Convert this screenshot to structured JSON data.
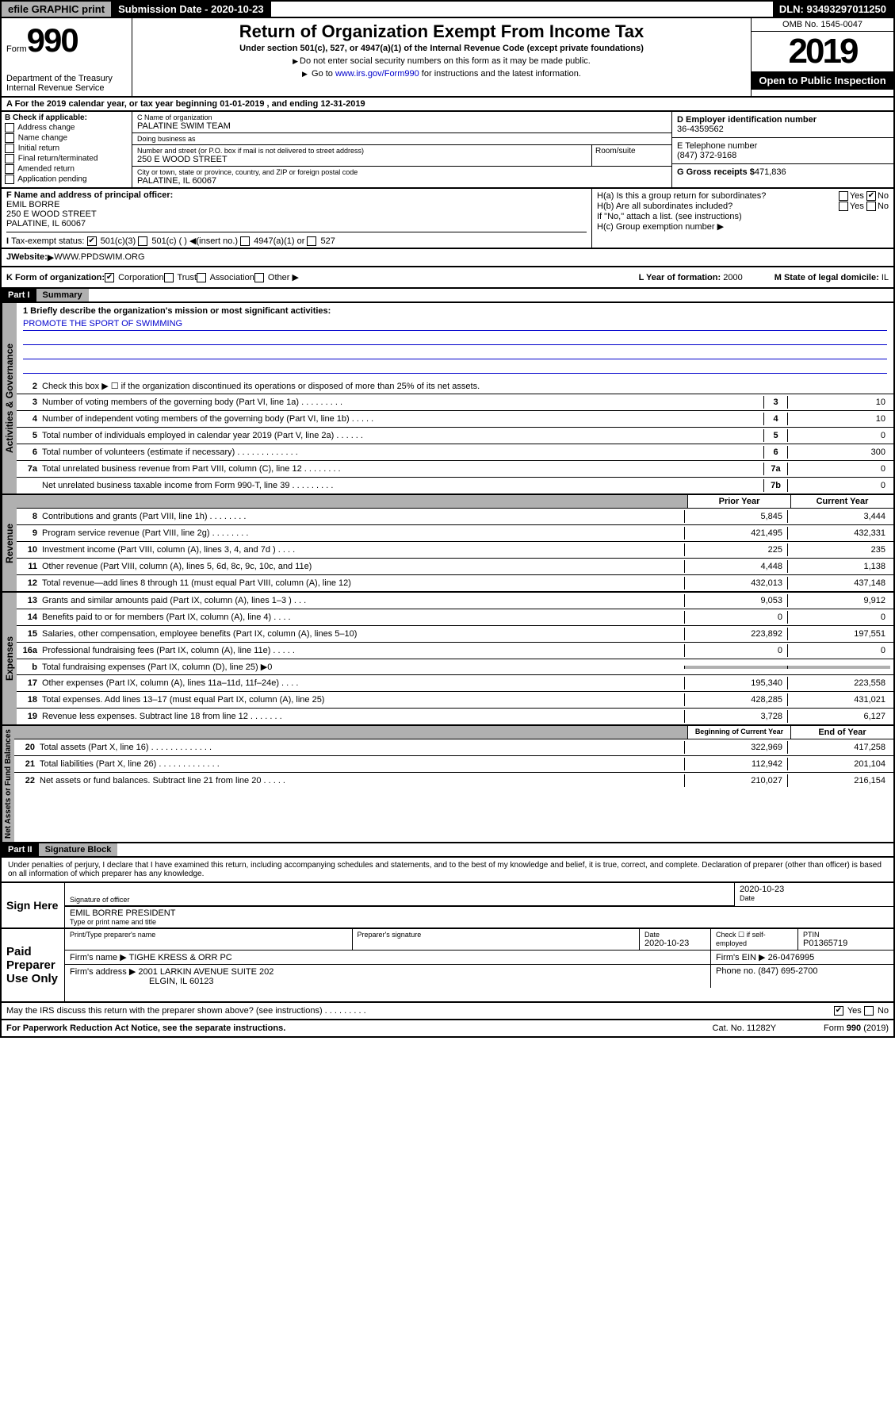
{
  "topbar": {
    "efile": "efile GRAPHIC print",
    "submission": "Submission Date - 2020-10-23",
    "dln": "DLN: 93493297011250"
  },
  "header": {
    "form_prefix": "Form",
    "form_number": "990",
    "dept": "Department of the Treasury\nInternal Revenue Service",
    "title": "Return of Organization Exempt From Income Tax",
    "subtitle": "Under section 501(c), 527, or 4947(a)(1) of the Internal Revenue Code (except private foundations)",
    "note1": "Do not enter social security numbers on this form as it may be made public.",
    "note2_pre": "Go to ",
    "note2_link": "www.irs.gov/Form990",
    "note2_post": " for instructions and the latest information.",
    "omb": "OMB No. 1545-0047",
    "year": "2019",
    "open": "Open to Public Inspection"
  },
  "line_a": "For the 2019 calendar year, or tax year beginning 01-01-2019   , and ending 12-31-2019",
  "box_b": {
    "title": "B Check if applicable:",
    "opts": [
      "Address change",
      "Name change",
      "Initial return",
      "Final return/terminated",
      "Amended return",
      "Application pending"
    ]
  },
  "box_c": {
    "name_lbl": "C Name of organization",
    "name": "PALATINE SWIM TEAM",
    "dba_lbl": "Doing business as",
    "addr_lbl": "Number and street (or P.O. box if mail is not delivered to street address)",
    "addr": "250 E WOOD STREET",
    "room_lbl": "Room/suite",
    "city_lbl": "City or town, state or province, country, and ZIP or foreign postal code",
    "city": "PALATINE, IL  60067"
  },
  "box_d": {
    "lbl": "D Employer identification number",
    "val": "36-4359562"
  },
  "box_e": {
    "lbl": "E Telephone number",
    "val": "(847) 372-9168"
  },
  "box_g": {
    "lbl": "G Gross receipts $",
    "val": "471,836"
  },
  "box_f": {
    "lbl": "F  Name and address of principal officer:",
    "name": "EMIL BORRE",
    "addr1": "250 E WOOD STREET",
    "addr2": "PALATINE, IL  60067"
  },
  "box_h": {
    "ha": "H(a)  Is this a group return for subordinates?",
    "ha_yes": "Yes",
    "ha_no": "No",
    "hb": "H(b)  Are all subordinates included?",
    "hb_yes": "Yes",
    "hb_no": "No",
    "hb_note": "If \"No,\" attach a list. (see instructions)",
    "hc": "H(c)  Group exemption number"
  },
  "row_i": {
    "lbl": "Tax-exempt status:",
    "o1": "501(c)(3)",
    "o2": "501(c) (  )",
    "o2b": "(insert no.)",
    "o3": "4947(a)(1) or",
    "o4": "527"
  },
  "row_j": {
    "lbl": "Website:",
    "val": "WWW.PPDSWIM.ORG"
  },
  "row_k": {
    "lbl": "K Form of organization:",
    "o1": "Corporation",
    "o2": "Trust",
    "o3": "Association",
    "o4": "Other",
    "l_lbl": "L Year of formation:",
    "l_val": "2000",
    "m_lbl": "M State of legal domicile:",
    "m_val": "IL"
  },
  "part1": {
    "hdr": "Part I",
    "title": "Summary"
  },
  "mission": {
    "lbl": "1  Briefly describe the organization's mission or most significant activities:",
    "text": "PROMOTE THE SPORT OF SWIMMING"
  },
  "gov_lines": [
    {
      "n": "2",
      "desc": "Check this box ▶ ☐  if the organization discontinued its operations or disposed of more than 25% of its net assets."
    },
    {
      "n": "3",
      "desc": "Number of voting members of the governing body (Part VI, line 1a)  .   .   .   .   .   .   .   .   .",
      "box": "3",
      "val": "10"
    },
    {
      "n": "4",
      "desc": "Number of independent voting members of the governing body (Part VI, line 1b)   .   .   .   .   .",
      "box": "4",
      "val": "10"
    },
    {
      "n": "5",
      "desc": "Total number of individuals employed in calendar year 2019 (Part V, line 2a)   .   .   .   .   .   .",
      "box": "5",
      "val": "0"
    },
    {
      "n": "6",
      "desc": "Total number of volunteers (estimate if necessary)   .   .   .   .   .   .   .   .   .   .   .   .   .",
      "box": "6",
      "val": "300"
    },
    {
      "n": "7a",
      "desc": "Total unrelated business revenue from Part VIII, column (C), line 12   .   .   .   .   .   .   .   .",
      "box": "7a",
      "val": "0"
    },
    {
      "n": "",
      "desc": "Net unrelated business taxable income from Form 990-T, line 39  .   .   .   .   .   .   .   .   .",
      "box": "7b",
      "val": "0"
    }
  ],
  "rev_hdr": {
    "c1": "Prior Year",
    "c2": "Current Year"
  },
  "rev_lines": [
    {
      "n": "8",
      "desc": "Contributions and grants (Part VIII, line 1h)   .   .   .   .   .   .   .   .",
      "v1": "5,845",
      "v2": "3,444"
    },
    {
      "n": "9",
      "desc": "Program service revenue (Part VIII, line 2g)    .   .   .   .   .   .   .   .",
      "v1": "421,495",
      "v2": "432,331"
    },
    {
      "n": "10",
      "desc": "Investment income (Part VIII, column (A), lines 3, 4, and 7d )   .   .   .   .",
      "v1": "225",
      "v2": "235"
    },
    {
      "n": "11",
      "desc": "Other revenue (Part VIII, column (A), lines 5, 6d, 8c, 9c, 10c, and 11e)",
      "v1": "4,448",
      "v2": "1,138"
    },
    {
      "n": "12",
      "desc": "Total revenue—add lines 8 through 11 (must equal Part VIII, column (A), line 12)",
      "v1": "432,013",
      "v2": "437,148"
    }
  ],
  "exp_lines": [
    {
      "n": "13",
      "desc": "Grants and similar amounts paid (Part IX, column (A), lines 1–3 )   .   .   .",
      "v1": "9,053",
      "v2": "9,912"
    },
    {
      "n": "14",
      "desc": "Benefits paid to or for members (Part IX, column (A), line 4)   .   .   .   .",
      "v1": "0",
      "v2": "0"
    },
    {
      "n": "15",
      "desc": "Salaries, other compensation, employee benefits (Part IX, column (A), lines 5–10)",
      "v1": "223,892",
      "v2": "197,551"
    },
    {
      "n": "16a",
      "desc": "Professional fundraising fees (Part IX, column (A), line 11e)   .   .   .   .   .",
      "v1": "0",
      "v2": "0"
    },
    {
      "n": "b",
      "desc": "Total fundraising expenses (Part IX, column (D), line 25) ▶0",
      "v1": "",
      "v2": "",
      "shade": true
    },
    {
      "n": "17",
      "desc": "Other expenses (Part IX, column (A), lines 11a–11d, 11f–24e)   .   .   .   .",
      "v1": "195,340",
      "v2": "223,558"
    },
    {
      "n": "18",
      "desc": "Total expenses. Add lines 13–17 (must equal Part IX, column (A), line 25)",
      "v1": "428,285",
      "v2": "431,021"
    },
    {
      "n": "19",
      "desc": "Revenue less expenses. Subtract line 18 from line 12   .   .   .   .   .   .   .",
      "v1": "3,728",
      "v2": "6,127"
    }
  ],
  "na_hdr": {
    "c1": "Beginning of Current Year",
    "c2": "End of Year"
  },
  "na_lines": [
    {
      "n": "20",
      "desc": "Total assets (Part X, line 16)   .   .   .   .   .   .   .   .   .   .   .   .   .",
      "v1": "322,969",
      "v2": "417,258"
    },
    {
      "n": "21",
      "desc": "Total liabilities (Part X, line 26)  .   .   .   .   .   .   .   .   .   .   .   .   .",
      "v1": "112,942",
      "v2": "201,104"
    },
    {
      "n": "22",
      "desc": "Net assets or fund balances. Subtract line 21 from line 20   .   .   .   .   .",
      "v1": "210,027",
      "v2": "216,154"
    }
  ],
  "part2": {
    "hdr": "Part II",
    "title": "Signature Block"
  },
  "decl": "Under penalties of perjury, I declare that I have examined this return, including accompanying schedules and statements, and to the best of my knowledge and belief, it is true, correct, and complete. Declaration of preparer (other than officer) is based on all information of which preparer has any knowledge.",
  "sign": {
    "label": "Sign Here",
    "date": "2020-10-23",
    "sig_lbl": "Signature of officer",
    "date_lbl": "Date",
    "name": "EMIL BORRE PRESIDENT",
    "name_lbl": "Type or print name and title"
  },
  "paid": {
    "label": "Paid Preparer Use Only",
    "h1": "Print/Type preparer's name",
    "h2": "Preparer's signature",
    "h3": "Date",
    "h3v": "2020-10-23",
    "h4": "Check ☐ if self-employed",
    "h5": "PTIN",
    "h5v": "P01365719",
    "firm_lbl": "Firm's name    ▶",
    "firm": "TIGHE KRESS & ORR PC",
    "ein_lbl": "Firm's EIN ▶",
    "ein": "26-0476995",
    "addr_lbl": "Firm's address ▶",
    "addr1": "2001 LARKIN AVENUE SUITE 202",
    "addr2": "ELGIN, IL  60123",
    "phone_lbl": "Phone no.",
    "phone": "(847) 695-2700"
  },
  "discuss": {
    "q": "May the IRS discuss this return with the preparer shown above? (see instructions)    .    .    .    .    .    .    .    .    .",
    "yes": "Yes",
    "no": "No"
  },
  "footer": {
    "left": "For Paperwork Reduction Act Notice, see the separate instructions.",
    "mid": "Cat. No. 11282Y",
    "right": "Form 990 (2019)"
  },
  "vlabels": {
    "gov": "Activities & Governance",
    "rev": "Revenue",
    "exp": "Expenses",
    "na": "Net Assets or Fund Balances"
  }
}
